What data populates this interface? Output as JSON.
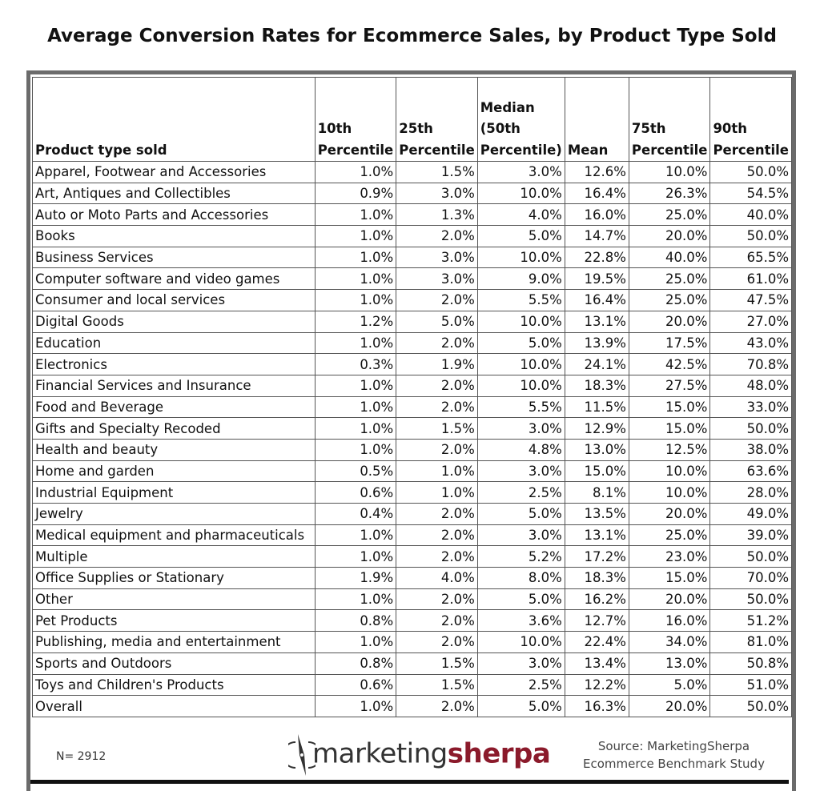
{
  "chart_data": {
    "type": "table",
    "title": "Average Conversion Rates for Ecommerce Sales, by Product Type Sold",
    "columns": [
      "Product type sold",
      "10th Percentile",
      "25th Percentile",
      "Median (50th Percentile)",
      "Mean",
      "75th Percentile",
      "90th Percentile"
    ],
    "rows": [
      [
        "Apparel, Footwear and Accessories",
        "1.0%",
        "1.5%",
        "3.0%",
        "12.6%",
        "10.0%",
        "50.0%"
      ],
      [
        "Art, Antiques and Collectibles",
        "0.9%",
        "3.0%",
        "10.0%",
        "16.4%",
        "26.3%",
        "54.5%"
      ],
      [
        "Auto or Moto Parts and Accessories",
        "1.0%",
        "1.3%",
        "4.0%",
        "16.0%",
        "25.0%",
        "40.0%"
      ],
      [
        "Books",
        "1.0%",
        "2.0%",
        "5.0%",
        "14.7%",
        "20.0%",
        "50.0%"
      ],
      [
        "Business Services",
        "1.0%",
        "3.0%",
        "10.0%",
        "22.8%",
        "40.0%",
        "65.5%"
      ],
      [
        "Computer software and video games",
        "1.0%",
        "3.0%",
        "9.0%",
        "19.5%",
        "25.0%",
        "61.0%"
      ],
      [
        "Consumer and local services",
        "1.0%",
        "2.0%",
        "5.5%",
        "16.4%",
        "25.0%",
        "47.5%"
      ],
      [
        "Digital Goods",
        "1.2%",
        "5.0%",
        "10.0%",
        "13.1%",
        "20.0%",
        "27.0%"
      ],
      [
        "Education",
        "1.0%",
        "2.0%",
        "5.0%",
        "13.9%",
        "17.5%",
        "43.0%"
      ],
      [
        "Electronics",
        "0.3%",
        "1.9%",
        "10.0%",
        "24.1%",
        "42.5%",
        "70.8%"
      ],
      [
        "Financial Services and Insurance",
        "1.0%",
        "2.0%",
        "10.0%",
        "18.3%",
        "27.5%",
        "48.0%"
      ],
      [
        "Food and Beverage",
        "1.0%",
        "2.0%",
        "5.5%",
        "11.5%",
        "15.0%",
        "33.0%"
      ],
      [
        "Gifts and Specialty Recoded",
        "1.0%",
        "1.5%",
        "3.0%",
        "12.9%",
        "15.0%",
        "50.0%"
      ],
      [
        "Health and beauty",
        "1.0%",
        "2.0%",
        "4.8%",
        "13.0%",
        "12.5%",
        "38.0%"
      ],
      [
        "Home and garden",
        "0.5%",
        "1.0%",
        "3.0%",
        "15.0%",
        "10.0%",
        "63.6%"
      ],
      [
        "Industrial Equipment",
        "0.6%",
        "1.0%",
        "2.5%",
        "8.1%",
        "10.0%",
        "28.0%"
      ],
      [
        "Jewelry",
        "0.4%",
        "2.0%",
        "5.0%",
        "13.5%",
        "20.0%",
        "49.0%"
      ],
      [
        "Medical equipment and pharmaceuticals",
        "1.0%",
        "2.0%",
        "3.0%",
        "13.1%",
        "25.0%",
        "39.0%"
      ],
      [
        "Multiple",
        "1.0%",
        "2.0%",
        "5.2%",
        "17.2%",
        "23.0%",
        "50.0%"
      ],
      [
        "Office Supplies or Stationary",
        "1.9%",
        "4.0%",
        "8.0%",
        "18.3%",
        "15.0%",
        "70.0%"
      ],
      [
        "Other",
        "1.0%",
        "2.0%",
        "5.0%",
        "16.2%",
        "20.0%",
        "50.0%"
      ],
      [
        "Pet Products",
        "0.8%",
        "2.0%",
        "3.6%",
        "12.7%",
        "16.0%",
        "51.2%"
      ],
      [
        "Publishing, media and entertainment",
        "1.0%",
        "2.0%",
        "10.0%",
        "22.4%",
        "34.0%",
        "81.0%"
      ],
      [
        "Sports and Outdoors",
        "0.8%",
        "1.5%",
        "3.0%",
        "13.4%",
        "13.0%",
        "50.8%"
      ],
      [
        "Toys and Children's Products",
        "0.6%",
        "1.5%",
        "2.5%",
        "12.2%",
        "5.0%",
        "51.0%"
      ],
      [
        "Overall",
        "1.0%",
        "2.0%",
        "5.0%",
        "16.3%",
        "20.0%",
        "50.0%"
      ]
    ]
  },
  "footer": {
    "n": "N= 2912",
    "logo_text_1": "marketing",
    "logo_text_2": "sherpa",
    "source_line1": "Source: MarketingSherpa",
    "source_line2": "Ecommerce Benchmark Study"
  },
  "colors": {
    "frame": "#6b6b6b",
    "logo_accent": "#8b1a2b"
  }
}
